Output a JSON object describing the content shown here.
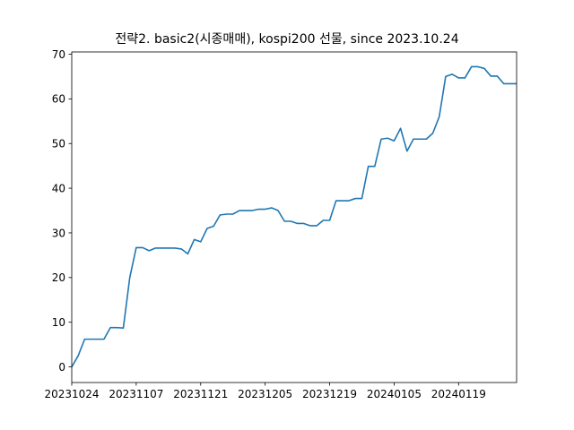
{
  "chart_data": {
    "type": "line",
    "title": "전략2. basic2(시종매매), kospi200 선물, since 2023.10.24",
    "xlabel": "",
    "ylabel": "",
    "grid": false,
    "legend": "none",
    "line_color": "#1f77b4",
    "x_ticks": [
      {
        "label": "20231024",
        "index": 0
      },
      {
        "label": "20231107",
        "index": 10
      },
      {
        "label": "20231121",
        "index": 20
      },
      {
        "label": "20231205",
        "index": 30
      },
      {
        "label": "20231219",
        "index": 40
      },
      {
        "label": "20240105",
        "index": 50
      },
      {
        "label": "20240119",
        "index": 60
      }
    ],
    "y_ticks": [
      0,
      10,
      20,
      30,
      40,
      50,
      60,
      70
    ],
    "xlim": [
      0,
      69
    ],
    "ylim": [
      -3.5,
      70.5
    ],
    "series": [
      {
        "values": [
          0,
          2.5,
          6.2,
          6.2,
          6.2,
          6.2,
          8.8,
          8.8,
          8.7,
          20,
          26.7,
          26.7,
          26,
          26.6,
          26.6,
          26.6,
          26.6,
          26.4,
          25.3,
          28.5,
          28,
          31,
          31.5,
          34,
          34.2,
          34.2,
          35,
          35,
          35,
          35.3,
          35.3,
          35.6,
          35,
          32.6,
          32.6,
          32.1,
          32.1,
          31.6,
          31.6,
          32.8,
          32.8,
          37.2,
          37.2,
          37.2,
          37.7,
          37.7,
          44.9,
          44.9,
          51,
          51.2,
          50.6,
          53.4,
          48.3,
          51,
          51,
          51,
          52.3,
          56,
          65,
          65.5,
          64.7,
          64.7,
          67.2,
          67.2,
          66.8,
          65.1,
          65.1,
          63.4,
          63.4,
          63.4
        ]
      }
    ]
  }
}
